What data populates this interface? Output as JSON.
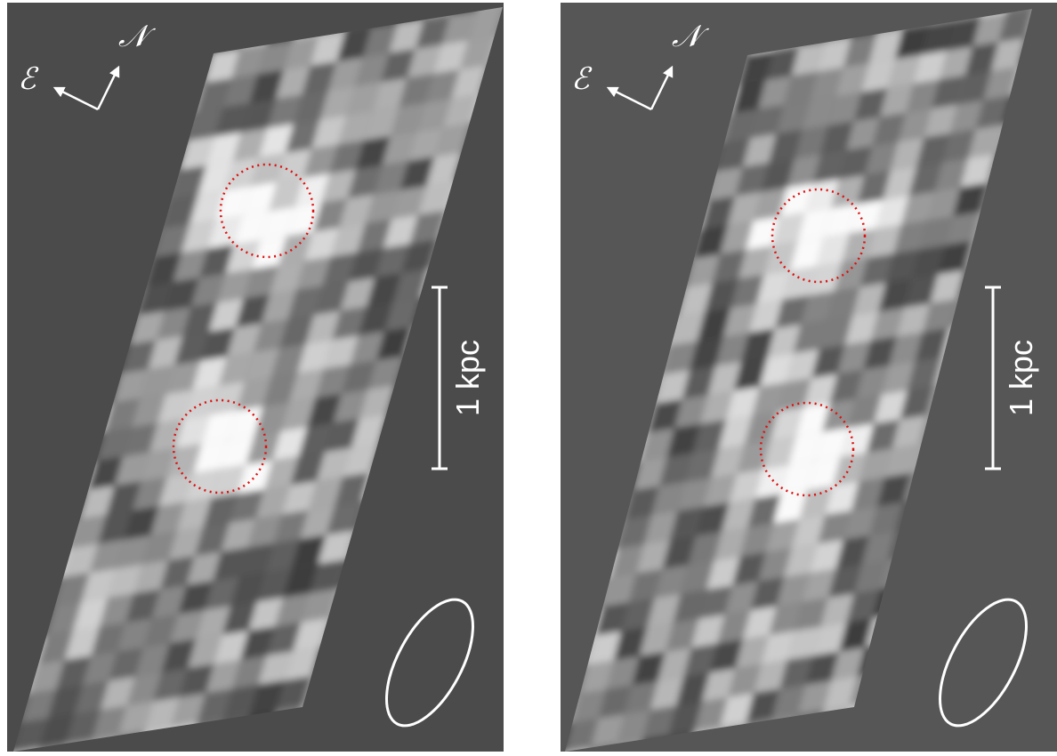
{
  "panels": [
    {
      "north_label": "𝒩",
      "east_label": "ℰ",
      "scale_label": "1 kpc"
    },
    {
      "north_label": "𝒩",
      "east_label": "ℰ",
      "scale_label": "1 kpc"
    }
  ]
}
